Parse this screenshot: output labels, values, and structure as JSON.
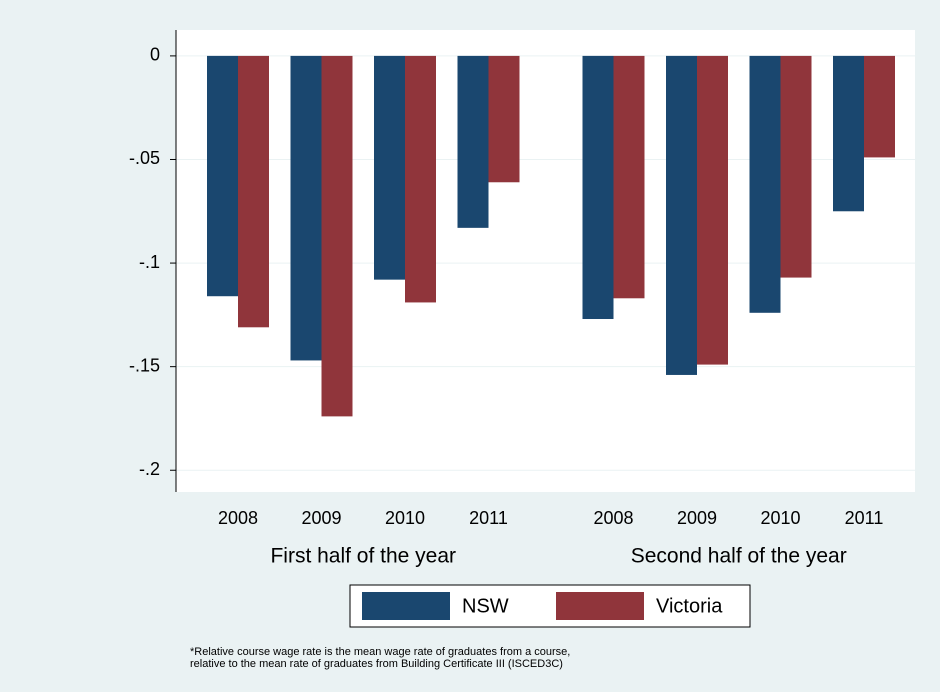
{
  "chart_data": {
    "type": "bar",
    "groups": [
      {
        "name": "First half of the year",
        "categories": [
          "2008",
          "2009",
          "2010",
          "2011"
        ]
      },
      {
        "name": "Second half of the year",
        "categories": [
          "2008",
          "2009",
          "2010",
          "2011"
        ]
      }
    ],
    "series": [
      {
        "name": "NSW",
        "color": "#1a476f",
        "values": [
          -0.116,
          -0.147,
          -0.108,
          -0.083,
          -0.127,
          -0.154,
          -0.124,
          -0.075
        ]
      },
      {
        "name": "Victoria",
        "color": "#90353b",
        "values": [
          -0.131,
          -0.174,
          -0.119,
          -0.061,
          -0.117,
          -0.149,
          -0.107,
          -0.049
        ]
      }
    ],
    "ylim": [
      -0.2105,
      0.0125
    ],
    "yticks": [
      {
        "value": 0,
        "label": "0"
      },
      {
        "value": -0.05,
        "label": "-.05"
      },
      {
        "value": -0.1,
        "label": "-.1"
      },
      {
        "value": -0.15,
        "label": "-.15"
      },
      {
        "value": -0.2,
        "label": "-.2"
      }
    ],
    "grid": true,
    "note": [
      "*Relative course wage rate is the mean wage rate of graduates from a course,",
      "relative to the mean rate of graduates from Building Certificate III (ISCED3C)"
    ]
  }
}
